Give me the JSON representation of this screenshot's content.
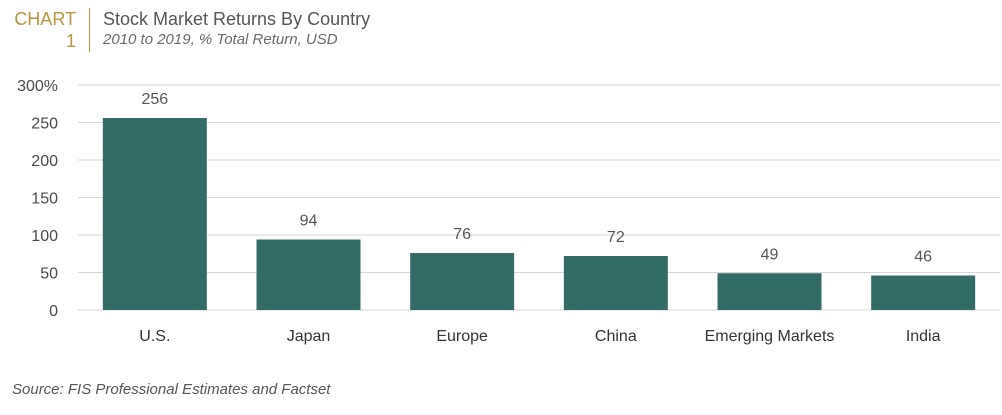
{
  "header": {
    "tag_word": "CHART",
    "tag_number": "1",
    "title": "Stock Market Returns By Country",
    "subtitle": "2010 to 2019, % Total Return, USD"
  },
  "source": "Source: FIS Professional Estimates and Factset",
  "colors": {
    "bar": "#336b67",
    "accent": "#b8963e",
    "grid": "#d6d6d6"
  },
  "chart_data": {
    "type": "bar",
    "categories": [
      "U.S.",
      "Japan",
      "Europe",
      "China",
      "Emerging Markets",
      "India"
    ],
    "values": [
      256,
      94,
      76,
      72,
      49,
      46
    ],
    "data_labels": [
      "256",
      "94",
      "76",
      "72",
      "49",
      "46"
    ],
    "title": "Stock Market Returns By Country",
    "subtitle": "2010 to 2019, % Total Return, USD",
    "xlabel": "",
    "ylabel": "",
    "ylim": [
      0,
      300
    ],
    "yticks": [
      0,
      50,
      100,
      150,
      200,
      250,
      300
    ],
    "ytick_labels": [
      "0",
      "50",
      "100",
      "150",
      "200",
      "250",
      "300%"
    ],
    "grid": true
  }
}
